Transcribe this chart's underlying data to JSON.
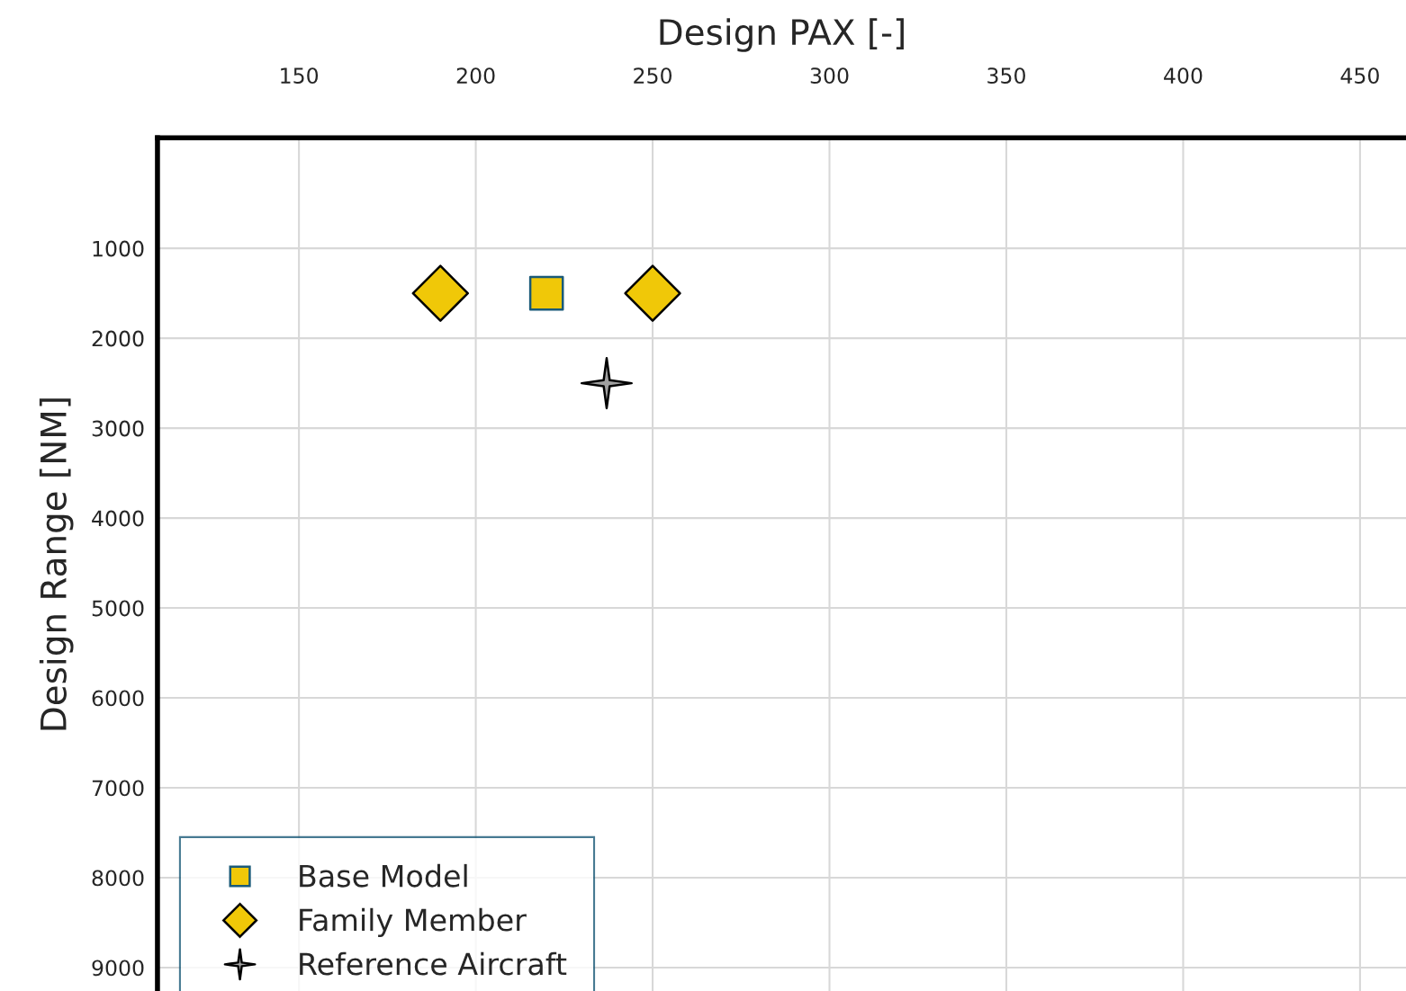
{
  "chart_data": {
    "type": "scatter",
    "xlabel": "Design PAX [-]",
    "ylabel": "Design Range [NM]",
    "xlim": [
      110,
      463
    ],
    "xticks": [
      150,
      200,
      250,
      300,
      350,
      400,
      450
    ],
    "ylim": [
      9260,
      -230
    ],
    "yticks": [
      1000,
      2000,
      3000,
      4000,
      5000,
      6000,
      7000,
      8000,
      9000
    ],
    "grid": true,
    "legend": "bottom left",
    "series": [
      {
        "name": "Base Model",
        "color": "#f0c808",
        "marker": "square",
        "x": [
          220
        ],
        "values": [
          1500
        ]
      },
      {
        "name": "Family Member",
        "color": "#f0c808",
        "marker": "diamond",
        "x": [
          190,
          250
        ],
        "values": [
          1500,
          1500
        ]
      },
      {
        "name": "Reference Aircraft",
        "color": "#a0a0a0",
        "marker": "star",
        "x": [
          237
        ],
        "values": [
          2500
        ]
      }
    ]
  }
}
